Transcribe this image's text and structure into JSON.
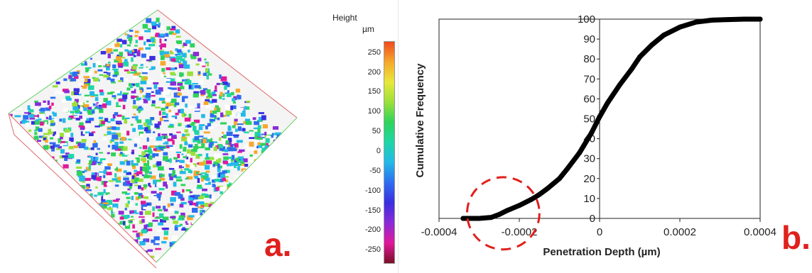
{
  "panel_a": {
    "label": "a.",
    "colorbar": {
      "title": "Height",
      "unit": "µm",
      "ticks": [
        "250",
        "200",
        "150",
        "100",
        "50",
        "0",
        "-50",
        "-100",
        "-150",
        "-200",
        "-250"
      ],
      "range": [
        -280,
        280
      ],
      "colors": [
        "#7a0f26",
        "#e0199a",
        "#8a2bd8",
        "#3a2ee0",
        "#2f6df0",
        "#23b9e8",
        "#1fd6a8",
        "#2ed35a",
        "#9be03a",
        "#e8e83a",
        "#f7a82c",
        "#f04a1e"
      ]
    }
  },
  "panel_b": {
    "label": "b."
  },
  "chart_data": {
    "type": "line",
    "xlabel": "Penetration Depth (µm)",
    "ylabel": "Cumulative Frequency",
    "xlim": [
      -0.0004,
      0.0004
    ],
    "ylim": [
      0,
      100
    ],
    "xticks": [
      "-0.0004",
      "-0.0002",
      "0",
      "0.0002",
      "0.0004"
    ],
    "yticks": [
      "0",
      "10",
      "20",
      "30",
      "40",
      "50",
      "60",
      "70",
      "80",
      "90",
      "100"
    ],
    "series": [
      {
        "x": [
          -0.00034,
          -0.0003,
          -0.00027,
          -0.00025,
          -0.00023,
          -0.0002,
          -0.00017,
          -0.00015,
          -0.00013,
          -0.0001,
          -8e-05,
          -5e-05,
          -2e-05,
          0,
          2e-05,
          5e-05,
          8e-05,
          0.0001,
          0.00013,
          0.00016,
          0.0002,
          0.00024,
          0.00028,
          0.00032,
          0.00036,
          0.0004
        ],
        "y": [
          0,
          0,
          0.5,
          2,
          4,
          6.5,
          9.5,
          12,
          15,
          20,
          25,
          33,
          43,
          51,
          58,
          67,
          75,
          81,
          87,
          92,
          96,
          98.5,
          99.5,
          99.8,
          100,
          100
        ]
      }
    ],
    "highlight": {
      "shape": "dashed-circle",
      "color": "#e0201c",
      "center": [
        -0.00024,
        4
      ],
      "radius_x": 9e-05
    }
  }
}
